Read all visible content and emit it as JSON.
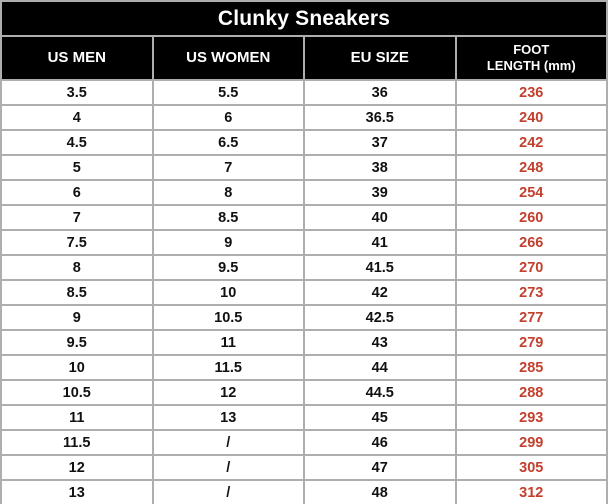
{
  "table": {
    "title": "Clunky Sneakers",
    "columns": [
      {
        "key": "us-men",
        "label": "US MEN"
      },
      {
        "key": "us-women",
        "label": "US WOMEN"
      },
      {
        "key": "eu-size",
        "label": "EU SIZE"
      },
      {
        "key": "foot-length",
        "label": "FOOT\nLENGTH (mm)"
      }
    ],
    "rows": [
      [
        "3.5",
        "5.5",
        "36",
        "236"
      ],
      [
        "4",
        "6",
        "36.5",
        "240"
      ],
      [
        "4.5",
        "6.5",
        "37",
        "242"
      ],
      [
        "5",
        "7",
        "38",
        "248"
      ],
      [
        "6",
        "8",
        "39",
        "254"
      ],
      [
        "7",
        "8.5",
        "40",
        "260"
      ],
      [
        "7.5",
        "9",
        "41",
        "266"
      ],
      [
        "8",
        "9.5",
        "41.5",
        "270"
      ],
      [
        "8.5",
        "10",
        "42",
        "273"
      ],
      [
        "9",
        "10.5",
        "42.5",
        "277"
      ],
      [
        "9.5",
        "11",
        "43",
        "279"
      ],
      [
        "10",
        "11.5",
        "44",
        "285"
      ],
      [
        "10.5",
        "12",
        "44.5",
        "288"
      ],
      [
        "11",
        "13",
        "45",
        "293"
      ],
      [
        "11.5",
        "/",
        "46",
        "299"
      ],
      [
        "12",
        "/",
        "47",
        "305"
      ],
      [
        "13",
        "/",
        "48",
        "312"
      ]
    ]
  },
  "chart_data": {
    "type": "table",
    "title": "Clunky Sneakers",
    "columns": [
      "US MEN",
      "US WOMEN",
      "EU SIZE",
      "FOOT LENGTH (mm)"
    ],
    "rows": [
      [
        "3.5",
        "5.5",
        "36",
        236
      ],
      [
        "4",
        "6",
        "36.5",
        240
      ],
      [
        "4.5",
        "6.5",
        "37",
        242
      ],
      [
        "5",
        "7",
        "38",
        248
      ],
      [
        "6",
        "8",
        "39",
        254
      ],
      [
        "7",
        "8.5",
        "40",
        260
      ],
      [
        "7.5",
        "9",
        "41",
        266
      ],
      [
        "8",
        "9.5",
        "41.5",
        270
      ],
      [
        "8.5",
        "10",
        "42",
        273
      ],
      [
        "9",
        "10.5",
        "42.5",
        277
      ],
      [
        "9.5",
        "11",
        "43",
        279
      ],
      [
        "10",
        "11.5",
        "44",
        285
      ],
      [
        "10.5",
        "12",
        "44.5",
        288
      ],
      [
        "11",
        "13",
        "45",
        293
      ],
      [
        "11.5",
        "/",
        "46",
        299
      ],
      [
        "12",
        "/",
        "47",
        305
      ],
      [
        "13",
        "/",
        "48",
        312
      ]
    ]
  },
  "colors": {
    "header_bg": "#000000",
    "header_text": "#ffffff",
    "border": "#aeaeae",
    "body_text": "#111111",
    "foot_length_text": "#c2402d",
    "row_bg": "#ffffff"
  }
}
